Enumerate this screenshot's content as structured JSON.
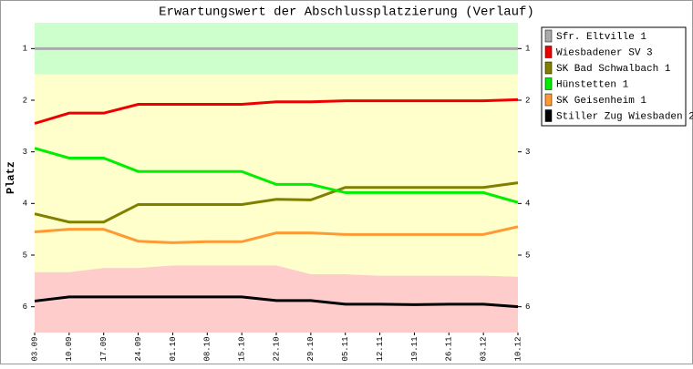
{
  "chart_data": {
    "type": "line",
    "title": "Erwartungswert der Abschlussplatzierung (Verlauf)",
    "y_label": "Platz",
    "categories": [
      "03.09",
      "10.09",
      "17.09",
      "24.09",
      "01.10",
      "08.10",
      "15.10",
      "22.10",
      "29.10",
      "05.11",
      "12.11",
      "19.11",
      "26.11",
      "03.12",
      "10.12"
    ],
    "series": [
      {
        "name": "Sfr. Eltville 1",
        "color": "#aaaaaa",
        "values": [
          1,
          1,
          1,
          1,
          1,
          1,
          1,
          1,
          1,
          1,
          1,
          1,
          1,
          1,
          1
        ]
      },
      {
        "name": "Wiesbadener SV 3",
        "color": "#ee0000",
        "values": [
          2.45,
          2.25,
          2.25,
          2.08,
          2.08,
          2.08,
          2.08,
          2.03,
          2.03,
          2.01,
          2.01,
          2.01,
          2.01,
          2.01,
          1.99
        ]
      },
      {
        "name": "SK Bad Schwalbach 1",
        "color": "#808000",
        "values": [
          4.2,
          4.36,
          4.36,
          4.02,
          4.02,
          4.02,
          4.02,
          3.92,
          3.93,
          3.69,
          3.69,
          3.69,
          3.69,
          3.69,
          3.6
        ]
      },
      {
        "name": "Hünstetten 1",
        "color": "#00ee00",
        "values": [
          2.93,
          3.12,
          3.12,
          3.38,
          3.38,
          3.38,
          3.38,
          3.63,
          3.63,
          3.79,
          3.79,
          3.79,
          3.79,
          3.79,
          3.98
        ]
      },
      {
        "name": "SK Geisenheim 1",
        "color": "#ff9933",
        "values": [
          4.55,
          4.5,
          4.5,
          4.73,
          4.76,
          4.74,
          4.74,
          4.57,
          4.57,
          4.6,
          4.6,
          4.6,
          4.6,
          4.6,
          4.45
        ]
      },
      {
        "name": "Stiller Zug Wiesbaden 2",
        "color": "#000000",
        "values": [
          5.89,
          5.81,
          5.81,
          5.81,
          5.81,
          5.81,
          5.81,
          5.88,
          5.88,
          5.95,
          5.95,
          5.96,
          5.95,
          5.95,
          6.0
        ]
      }
    ],
    "zone_colors": [
      "#ccffcc",
      "#ffffcc",
      "#ffcccc"
    ],
    "zone_bounds": [
      [
        1.5,
        1.5,
        1.5,
        1.5,
        1.5,
        1.5,
        1.5,
        1.5,
        1.5,
        1.5,
        1.5,
        1.5,
        1.5,
        1.5,
        1.5
      ],
      [
        5.33,
        5.33,
        5.25,
        5.25,
        5.2,
        5.2,
        5.2,
        5.2,
        5.37,
        5.37,
        5.4,
        5.4,
        5.4,
        5.4,
        5.42
      ]
    ],
    "ylim": [
      0.5,
      6.5
    ],
    "y_inverted": true,
    "yticks": [
      1,
      2,
      3,
      4,
      5,
      6
    ],
    "legend": "right"
  }
}
